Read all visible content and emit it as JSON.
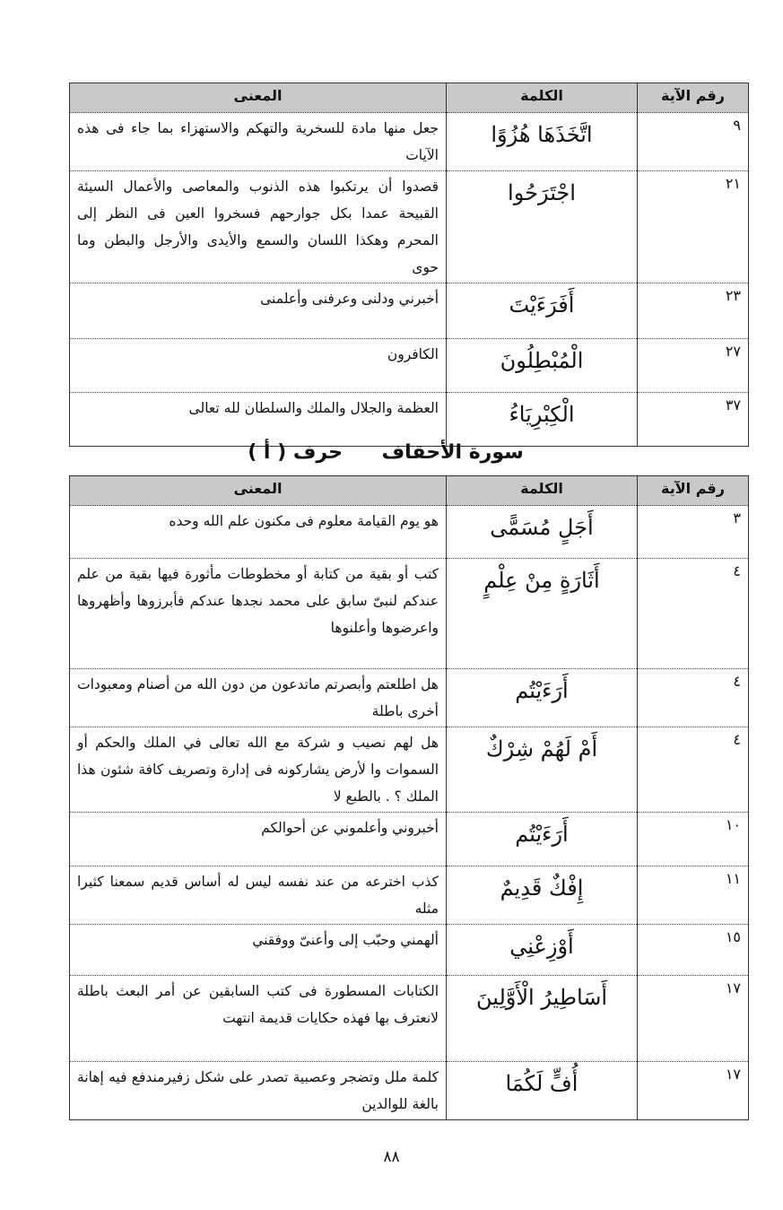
{
  "table1": {
    "header": [
      "رقم الآية",
      "الكلمة",
      "المعنى"
    ],
    "rows": [
      [
        "٩",
        "اتَّخَذَهَا هُزُوًا",
        "جعل منها مادة للسخرية والتهكم والاستهزاء بما جاء فى هذه الآيات"
      ],
      [
        "٢١",
        "اجْتَرَحُوا",
        "قصدوا أن يرتكبوا هذه الذنوب والمعاصى والأعمال السيئة القبيحة عمدا بكل جوارحهم فسخروا العين فى النظر إلى المحرم وهكذا اللسان والسمع والأيدى والأرجل والبطن وما حوى"
      ],
      [
        "٢٣",
        "أَفَرَءَيْتَ",
        "أخبرني ودلنى وعرفنى وأعلمنى"
      ],
      [
        "٢٧",
        "الْمُبْطِلُونَ",
        "الكافرون"
      ],
      [
        "٣٧",
        "الْكِبْرِيَاءُ",
        "العظمة والجلال والملك والسلطان لله تعالى"
      ]
    ]
  },
  "section": {
    "surah": "سورة الأحقاف",
    "letter": "حرف ( أ )"
  },
  "table2": {
    "header": [
      "رقم الآية",
      "الكلمة",
      "المعنى"
    ],
    "rows": [
      [
        "٣",
        "أَجَلٍ مُسَمًّى",
        "هو يوم القيامة معلوم فى مكنون علم الله وحده"
      ],
      [
        "٤",
        "أَثَارَةٍ مِنْ عِلْمٍ",
        "كتب أو بقية من كتابة أو مخطوطات مأثورة فيها بقية من علم عندكم لنبىّ سابق على محمد نجدها عندكم فأبرزوها وأظهروها واعرضوها وأعلنوها"
      ],
      [
        "٤",
        "أَرَءَيْتُم",
        "هل اطلعتم وأبصرتم ماتدعون من دون الله من أصنام ومعبودات أخرى باطلة"
      ],
      [
        "٤",
        "أَمْ لَهُمْ شِرْكٌ",
        "هل لهم نصيب و شركة مع الله تعالى في الملك والحكم أو السموات وا لأرض يشاركونه فى إدارة وتصريف كافة شئون هذا الملك ؟ . بالطبع لا"
      ],
      [
        "١٠",
        "أَرَءَيْتُم",
        "أخبروني وأعلموني عن أحوالكم"
      ],
      [
        "١١",
        "إِفْكٌ قَدِيمٌ",
        "كذب اخترعه من عند نفسه ليس له أساس قديم سمعنا كثيرا مثله"
      ],
      [
        "١٥",
        "أَوْزِعْنِي",
        "ألهمني وحبّب إلى وأعنىّ ووفقني"
      ],
      [
        "١٧",
        "أَسَاطِيرُ الْأَوَّلِينَ",
        "الكتابات المسطورة فى كتب السابقين عن أمر البعث باطلة لانعترف بها فهذه حكايات قديمة انتهت"
      ],
      [
        "١٧",
        "أُفٍّ لَكُمَا",
        "كلمة ملل وتضجر وعصبية تصدر على شكل زفيرمندفع فيه إهانة بالغة للوالدين"
      ]
    ]
  },
  "page_number": "٨٨"
}
